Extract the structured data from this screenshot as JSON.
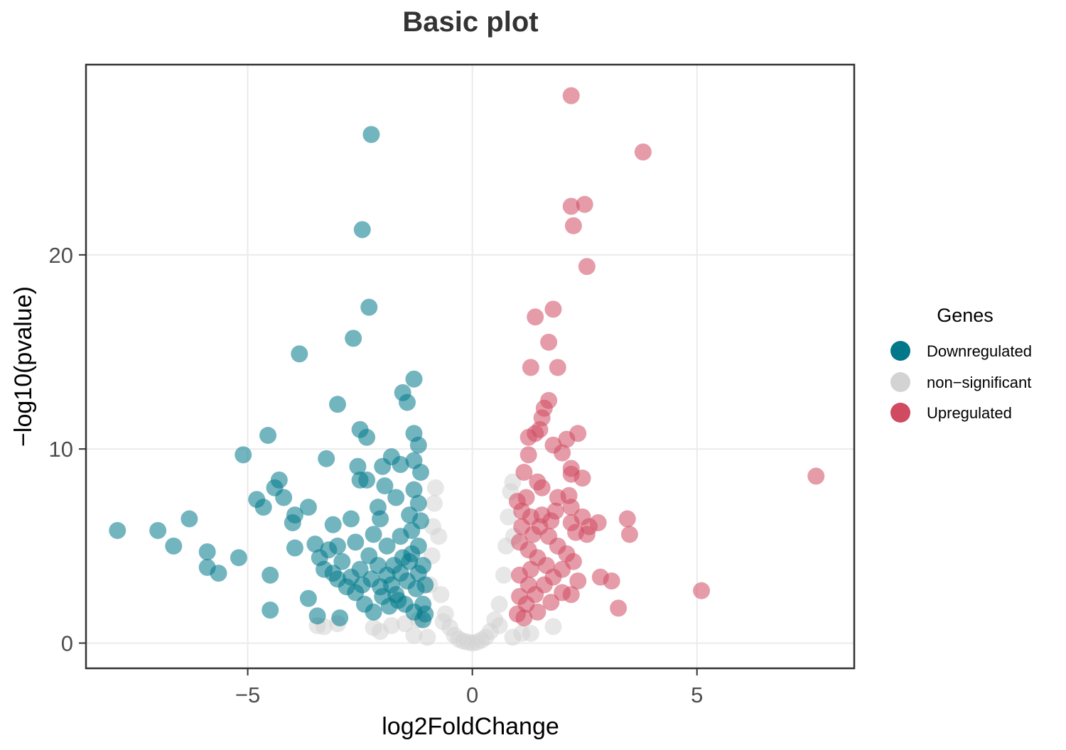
{
  "chart_data": {
    "type": "scatter",
    "title": "Basic plot",
    "xlabel": "log2FoldChange",
    "ylabel": "−log10(pvalue)",
    "xlim": [
      -8.6,
      8.5
    ],
    "ylim": [
      -1.3,
      29.8
    ],
    "x_ticks": [
      -5,
      0,
      5
    ],
    "x_tick_labels": [
      "−5",
      "0",
      "5"
    ],
    "y_ticks": [
      0,
      10,
      20
    ],
    "y_tick_labels": [
      "0",
      "10",
      "20"
    ],
    "grid": true,
    "legend": {
      "title": "Genes",
      "position": "right",
      "entries": [
        {
          "name": "Downregulated",
          "color": "#00788a"
        },
        {
          "name": "non−significant",
          "color": "#d3d3d3"
        },
        {
          "name": "Upregulated",
          "color": "#d04a60"
        }
      ]
    },
    "series": [
      {
        "name": "non−significant",
        "color": "#d3d3d3",
        "points": [
          [
            -3.45,
            0.9
          ],
          [
            -3.3,
            0.85
          ],
          [
            -3.0,
            1.0
          ],
          [
            -2.2,
            0.8
          ],
          [
            -2.05,
            0.6
          ],
          [
            -1.8,
            0.9
          ],
          [
            -1.5,
            1.0
          ],
          [
            -1.2,
            1.2
          ],
          [
            -0.95,
            3.0
          ],
          [
            -0.9,
            4.5
          ],
          [
            -0.88,
            6.0
          ],
          [
            -0.85,
            7.2
          ],
          [
            -0.82,
            8.0
          ],
          [
            -0.75,
            5.5
          ],
          [
            -0.7,
            2.5
          ],
          [
            -0.6,
            1.5
          ],
          [
            -0.5,
            0.8
          ],
          [
            -0.4,
            0.4
          ],
          [
            -0.3,
            0.2
          ],
          [
            -0.2,
            0.1
          ],
          [
            -0.1,
            0.05
          ],
          [
            0.0,
            0.0
          ],
          [
            0.1,
            0.05
          ],
          [
            0.2,
            0.15
          ],
          [
            0.3,
            0.3
          ],
          [
            0.4,
            0.6
          ],
          [
            0.5,
            1.2
          ],
          [
            0.6,
            2.0
          ],
          [
            0.7,
            3.5
          ],
          [
            0.75,
            5.0
          ],
          [
            0.8,
            6.5
          ],
          [
            0.85,
            7.8
          ],
          [
            0.9,
            8.3
          ],
          [
            0.92,
            5.5
          ],
          [
            1.1,
            0.5
          ],
          [
            1.3,
            0.5
          ],
          [
            1.8,
            0.85
          ],
          [
            -1.0,
            0.3
          ],
          [
            -1.3,
            0.4
          ],
          [
            0.9,
            0.3
          ],
          [
            0.6,
            0.9
          ],
          [
            -0.65,
            1.1
          ]
        ]
      },
      {
        "name": "Downregulated",
        "color": "#00788a",
        "points": [
          [
            -7.9,
            5.8
          ],
          [
            -7.0,
            5.8
          ],
          [
            -6.65,
            5.0
          ],
          [
            -6.3,
            6.4
          ],
          [
            -5.9,
            4.7
          ],
          [
            -5.9,
            3.9
          ],
          [
            -5.65,
            3.6
          ],
          [
            -5.2,
            4.4
          ],
          [
            -5.1,
            9.7
          ],
          [
            -4.8,
            7.4
          ],
          [
            -4.65,
            7.0
          ],
          [
            -4.55,
            10.7
          ],
          [
            -4.5,
            3.5
          ],
          [
            -4.5,
            1.7
          ],
          [
            -4.4,
            8.0
          ],
          [
            -4.3,
            8.4
          ],
          [
            -4.2,
            7.5
          ],
          [
            -4.0,
            6.2
          ],
          [
            -3.95,
            6.6
          ],
          [
            -3.95,
            4.9
          ],
          [
            -3.85,
            14.9
          ],
          [
            -3.65,
            7.0
          ],
          [
            -3.65,
            2.3
          ],
          [
            -3.45,
            1.4
          ],
          [
            -3.25,
            9.5
          ],
          [
            -3.1,
            6.1
          ],
          [
            -3.0,
            12.3
          ],
          [
            -2.95,
            1.3
          ],
          [
            -2.7,
            6.4
          ],
          [
            -2.65,
            15.7
          ],
          [
            -2.55,
            9.1
          ],
          [
            -2.5,
            8.4
          ],
          [
            -2.5,
            11.0
          ],
          [
            -2.35,
            8.4
          ],
          [
            -2.35,
            10.6
          ],
          [
            -2.45,
            21.3
          ],
          [
            -2.3,
            17.3
          ],
          [
            -2.25,
            26.2
          ],
          [
            -2.1,
            7.0
          ],
          [
            -2.05,
            6.4
          ],
          [
            -2.0,
            9.1
          ],
          [
            -1.95,
            8.1
          ],
          [
            -1.8,
            9.6
          ],
          [
            -1.6,
            9.2
          ],
          [
            -1.55,
            12.9
          ],
          [
            -1.45,
            12.4
          ],
          [
            -1.3,
            13.6
          ],
          [
            -1.3,
            10.8
          ],
          [
            -1.2,
            10.2
          ],
          [
            -1.3,
            9.4
          ],
          [
            -1.15,
            8.8
          ],
          [
            -1.3,
            7.9
          ],
          [
            -1.2,
            7.2
          ],
          [
            -1.4,
            6.6
          ],
          [
            -1.7,
            7.5
          ],
          [
            -2.2,
            5.6
          ],
          [
            -2.6,
            5.2
          ],
          [
            -3.0,
            5.0
          ],
          [
            -3.2,
            4.8
          ],
          [
            -3.4,
            4.4
          ],
          [
            -3.3,
            3.8
          ],
          [
            -3.0,
            3.3
          ],
          [
            -2.8,
            2.9
          ],
          [
            -2.6,
            2.6
          ],
          [
            -2.4,
            2.0
          ],
          [
            -2.2,
            1.6
          ],
          [
            -2.0,
            2.4
          ],
          [
            -1.8,
            3.0
          ],
          [
            -1.6,
            3.6
          ],
          [
            -1.4,
            4.2
          ],
          [
            -1.2,
            5.0
          ],
          [
            -1.1,
            4.0
          ],
          [
            -1.05,
            3.0
          ],
          [
            -1.1,
            2.0
          ],
          [
            -1.05,
            1.5
          ],
          [
            -1.3,
            1.6
          ],
          [
            -1.5,
            2.0
          ],
          [
            -1.7,
            2.5
          ],
          [
            -1.9,
            3.5
          ],
          [
            -2.1,
            4.0
          ],
          [
            -2.3,
            4.5
          ],
          [
            -2.5,
            3.8
          ],
          [
            -2.7,
            3.4
          ],
          [
            -2.9,
            4.2
          ],
          [
            -1.6,
            5.5
          ],
          [
            -1.9,
            5.0
          ],
          [
            -1.35,
            5.8
          ],
          [
            -1.15,
            6.3
          ],
          [
            -1.25,
            2.8
          ],
          [
            -1.45,
            3.2
          ],
          [
            -1.65,
            2.2
          ],
          [
            -1.85,
            1.9
          ],
          [
            -2.05,
            2.9
          ],
          [
            -2.25,
            3.3
          ],
          [
            -1.2,
            3.6
          ],
          [
            -1.1,
            1.2
          ],
          [
            -1.35,
            4.6
          ],
          [
            -1.55,
            4.4
          ],
          [
            -1.75,
            4.0
          ],
          [
            -2.45,
            3.0
          ],
          [
            -3.1,
            3.6
          ],
          [
            -3.5,
            5.1
          ]
        ]
      },
      {
        "name": "Upregulated",
        "color": "#d04a60",
        "points": [
          [
            2.2,
            28.2
          ],
          [
            3.8,
            25.3
          ],
          [
            2.2,
            22.5
          ],
          [
            2.5,
            22.6
          ],
          [
            2.25,
            21.5
          ],
          [
            2.55,
            19.4
          ],
          [
            1.8,
            17.2
          ],
          [
            1.4,
            16.8
          ],
          [
            1.7,
            15.5
          ],
          [
            1.3,
            14.2
          ],
          [
            1.9,
            14.2
          ],
          [
            1.7,
            12.5
          ],
          [
            1.6,
            12.1
          ],
          [
            1.55,
            11.6
          ],
          [
            1.5,
            11.0
          ],
          [
            1.4,
            10.8
          ],
          [
            1.25,
            10.6
          ],
          [
            2.35,
            10.8
          ],
          [
            2.1,
            10.5
          ],
          [
            1.8,
            10.2
          ],
          [
            2.0,
            9.8
          ],
          [
            1.25,
            9.7
          ],
          [
            2.2,
            9.0
          ],
          [
            2.2,
            8.7
          ],
          [
            1.15,
            8.8
          ],
          [
            2.45,
            8.5
          ],
          [
            1.45,
            8.3
          ],
          [
            1.55,
            8.0
          ],
          [
            2.15,
            7.6
          ],
          [
            1.9,
            7.5
          ],
          [
            2.2,
            7.0
          ],
          [
            1.85,
            6.8
          ],
          [
            2.45,
            6.5
          ],
          [
            2.2,
            6.2
          ],
          [
            2.6,
            6.0
          ],
          [
            2.8,
            6.2
          ],
          [
            2.3,
            5.7
          ],
          [
            2.55,
            5.6
          ],
          [
            1.2,
            7.5
          ],
          [
            1.0,
            7.3
          ],
          [
            1.1,
            6.8
          ],
          [
            1.3,
            6.5
          ],
          [
            1.5,
            6.0
          ],
          [
            1.7,
            5.5
          ],
          [
            1.9,
            5.0
          ],
          [
            2.1,
            4.6
          ],
          [
            2.25,
            4.2
          ],
          [
            2.0,
            3.8
          ],
          [
            1.8,
            3.4
          ],
          [
            1.6,
            3.0
          ],
          [
            1.4,
            2.5
          ],
          [
            1.2,
            2.0
          ],
          [
            1.0,
            1.5
          ],
          [
            1.15,
            1.3
          ],
          [
            1.45,
            1.6
          ],
          [
            1.75,
            2.1
          ],
          [
            2.0,
            2.6
          ],
          [
            2.2,
            2.5
          ],
          [
            2.35,
            3.2
          ],
          [
            2.85,
            3.4
          ],
          [
            3.1,
            3.2
          ],
          [
            3.25,
            1.8
          ],
          [
            3.45,
            6.4
          ],
          [
            3.5,
            5.6
          ],
          [
            5.1,
            2.7
          ],
          [
            7.65,
            8.6
          ],
          [
            1.05,
            5.2
          ],
          [
            1.25,
            4.8
          ],
          [
            1.45,
            4.4
          ],
          [
            1.65,
            4.0
          ],
          [
            1.05,
            3.5
          ],
          [
            1.25,
            3.0
          ],
          [
            1.05,
            2.4
          ],
          [
            1.35,
            5.6
          ],
          [
            1.55,
            6.6
          ],
          [
            1.75,
            6.3
          ],
          [
            1.1,
            6.0
          ],
          [
            1.3,
            3.8
          ]
        ]
      }
    ]
  }
}
